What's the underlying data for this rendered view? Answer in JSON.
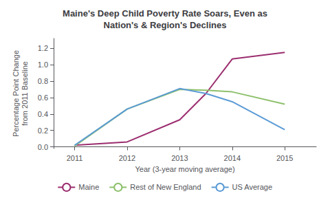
{
  "chart_data": {
    "type": "line",
    "title": "Maine's Deep Child Poverty Rate Soars, Even as\nNation's & Region's Declines",
    "xlabel": "Year (3-year moving average)",
    "ylabel": "Percentage Point Change\nfrom 2011 Baseline",
    "x": [
      2011,
      2012,
      2013,
      2013.5,
      2014,
      2015
    ],
    "series": [
      {
        "name": "Maine",
        "color": "#9B2D6E",
        "values": [
          0.02,
          0.06,
          0.33,
          0.65,
          1.07,
          1.15
        ]
      },
      {
        "name": "Rest of New England",
        "color": "#8DC06B",
        "values": [
          0.01,
          0.46,
          0.7,
          0.69,
          0.67,
          0.52
        ]
      },
      {
        "name": "US Average",
        "color": "#5B9BD5",
        "values": [
          0.02,
          0.46,
          0.71,
          0.65,
          0.55,
          0.21
        ]
      }
    ],
    "xlim": [
      2010.6,
      2015.6
    ],
    "xticks": [
      2011,
      2012,
      2013,
      2014,
      2015
    ],
    "ylim": [
      -0.02,
      1.32
    ],
    "yticks": [
      {
        "value": 0.0,
        "label": "0.0"
      },
      0.2,
      0.4,
      0.6,
      {
        "value": 1.0,
        "label": "1.0"
      },
      0.8,
      1.2
    ],
    "grid": false,
    "legend": "bottom"
  }
}
